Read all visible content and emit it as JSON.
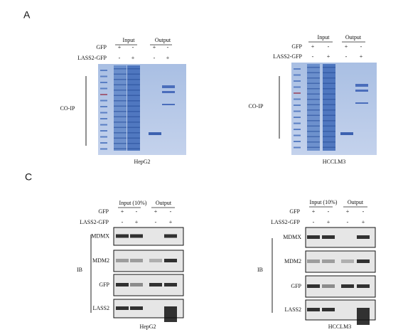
{
  "panels": [
    {
      "label": "A",
      "blots": [
        {
          "header": [
            "Input",
            "Output"
          ],
          "rows": [
            {
              "name": "GFP",
              "signs": [
                "+",
                "-",
                "+",
                "-"
              ]
            },
            {
              "name": "LASS2-GFP",
              "signs": [
                "-",
                "+",
                "-",
                "+"
              ]
            }
          ],
          "side_label": "CO-IP",
          "cell_line": "HepG2"
        },
        {
          "header": [
            "Input",
            "Output"
          ],
          "rows": [
            {
              "name": "GFP",
              "signs": [
                "+",
                "-",
                "+",
                "-"
              ]
            },
            {
              "name": "LASS2-GFP",
              "signs": [
                "-",
                "+",
                "-",
                "+"
              ]
            }
          ],
          "side_label": "CO-IP",
          "cell_line": "HCCLM3"
        }
      ]
    },
    {
      "label": "C",
      "blots": [
        {
          "header": [
            "Input (10%)",
            "Output"
          ],
          "rows": [
            {
              "name": "GFP",
              "signs": [
                "+",
                "-",
                "+",
                "-"
              ]
            },
            {
              "name": "LASS2-GFP",
              "signs": [
                "-",
                "+",
                "-",
                "+"
              ]
            }
          ],
          "side_label": "IB",
          "bands": [
            "MDMX",
            "MDM2",
            "GFP",
            "LASS2"
          ],
          "cell_line": "HepG2"
        },
        {
          "header": [
            "Input (10%)",
            "Output"
          ],
          "rows": [
            {
              "name": "GFP",
              "signs": [
                "+",
                "-",
                "+",
                "-"
              ]
            },
            {
              "name": "LASS2-GFP",
              "signs": [
                "-",
                "+",
                "-",
                "+"
              ]
            }
          ],
          "side_label": "IB",
          "bands": [
            "MDMX",
            "MDM2",
            "GFP",
            "LASS2"
          ],
          "cell_line": "HCCLM3"
        }
      ]
    }
  ]
}
